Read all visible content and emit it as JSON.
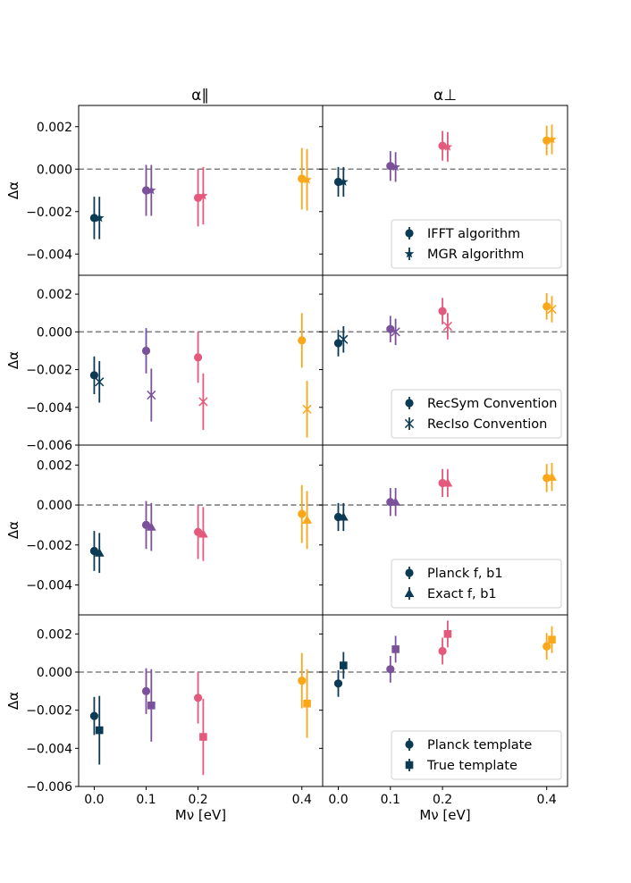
{
  "colors": {
    "c0": "#0b3a55",
    "c1": "#7a519a",
    "c2": "#e45a7c",
    "c3": "#fba71a",
    "zero_line": "#808080"
  },
  "column_titles": [
    "α∥",
    "α⊥"
  ],
  "chart_data": {
    "type": "scatter",
    "xlabel": "Mν [eV]",
    "ylabel": "Δα",
    "xlim": [
      -0.03,
      0.44
    ],
    "xticks": [
      0.0,
      0.1,
      0.2,
      0.4
    ],
    "xtick_labels": [
      "0.0",
      "0.1",
      "0.2",
      "0.4"
    ],
    "x_positions": [
      0.0,
      0.1,
      0.2,
      0.4
    ],
    "reference_line": 0.0,
    "rows": [
      {
        "ylim": [
          -0.005,
          0.003
        ],
        "yticks": [
          -0.004,
          -0.002,
          0.0,
          0.002
        ],
        "ytick_labels": [
          "−0.004",
          "−0.002",
          "0.000",
          "0.002"
        ],
        "legend": [
          "IFFT algorithm",
          "MGR algorithm"
        ],
        "markers": [
          "circle",
          "star"
        ],
        "panels": [
          {
            "series": [
              {
                "y": [
                  -0.0023,
                  -0.001,
                  -0.00135,
                  -0.00045
                ],
                "yerr": [
                  0.001,
                  0.0012,
                  0.00135,
                  0.00145
                ]
              },
              {
                "y": [
                  -0.0023,
                  -0.001,
                  -0.00125,
                  -0.0005
                ],
                "yerr": [
                  0.001,
                  0.0012,
                  0.00135,
                  0.00145
                ]
              }
            ]
          },
          {
            "series": [
              {
                "y": [
                  -0.0006,
                  0.00015,
                  0.0011,
                  0.00135
                ],
                "yerr": [
                  0.0007,
                  0.0007,
                  0.0007,
                  0.0007
                ]
              },
              {
                "y": [
                  -0.0006,
                  0.0001,
                  0.00105,
                  0.0014
                ],
                "yerr": [
                  0.0007,
                  0.0007,
                  0.0007,
                  0.0007
                ]
              }
            ]
          }
        ]
      },
      {
        "ylim": [
          -0.006,
          0.003
        ],
        "yticks": [
          -0.006,
          -0.004,
          -0.002,
          0.0,
          0.002
        ],
        "ytick_labels": [
          "−0.006",
          "−0.004",
          "−0.002",
          "0.000",
          "0.002"
        ],
        "legend": [
          "RecSym Convention",
          "RecIso Convention"
        ],
        "markers": [
          "circle",
          "x"
        ],
        "panels": [
          {
            "series": [
              {
                "y": [
                  -0.0023,
                  -0.001,
                  -0.00135,
                  -0.00045
                ],
                "yerr": [
                  0.001,
                  0.0012,
                  0.00135,
                  0.00145
                ]
              },
              {
                "y": [
                  -0.00265,
                  -0.00335,
                  -0.0037,
                  -0.0041
                ],
                "yerr": [
                  0.0011,
                  0.0014,
                  0.0015,
                  0.0015
                ]
              }
            ]
          },
          {
            "series": [
              {
                "y": [
                  -0.0006,
                  0.00015,
                  0.0011,
                  0.00135
                ],
                "yerr": [
                  0.0007,
                  0.0007,
                  0.0007,
                  0.0007
                ]
              },
              {
                "y": [
                  -0.0004,
                  0.0,
                  0.0003,
                  0.0012
                ],
                "yerr": [
                  0.0007,
                  0.0007,
                  0.0007,
                  0.0007
                ]
              }
            ]
          }
        ]
      },
      {
        "ylim": [
          -0.0055,
          0.003
        ],
        "yticks": [
          -0.004,
          -0.002,
          0.0,
          0.002
        ],
        "ytick_labels": [
          "−0.004",
          "−0.002",
          "0.000",
          "0.002"
        ],
        "legend": [
          "Planck f, b1",
          "Exact f, b1"
        ],
        "markers": [
          "circle",
          "triangle"
        ],
        "panels": [
          {
            "series": [
              {
                "y": [
                  -0.0023,
                  -0.001,
                  -0.00135,
                  -0.00045
                ],
                "yerr": [
                  0.001,
                  0.0012,
                  0.00135,
                  0.00145
                ]
              },
              {
                "y": [
                  -0.0024,
                  -0.0011,
                  -0.00145,
                  -0.00075
                ],
                "yerr": [
                  0.001,
                  0.0012,
                  0.00135,
                  0.00145
                ]
              }
            ]
          },
          {
            "series": [
              {
                "y": [
                  -0.0006,
                  0.00015,
                  0.0011,
                  0.00135
                ],
                "yerr": [
                  0.0007,
                  0.0007,
                  0.0007,
                  0.0007
                ]
              },
              {
                "y": [
                  -0.0006,
                  0.00015,
                  0.0011,
                  0.0014
                ],
                "yerr": [
                  0.0007,
                  0.0007,
                  0.0007,
                  0.0007
                ]
              }
            ]
          }
        ]
      },
      {
        "ylim": [
          -0.006,
          0.003
        ],
        "yticks": [
          -0.006,
          -0.004,
          -0.002,
          0.0,
          0.002
        ],
        "ytick_labels": [
          "−0.006",
          "−0.004",
          "−0.002",
          "0.000",
          "0.002"
        ],
        "legend": [
          "Planck template",
          "True template"
        ],
        "markers": [
          "circle",
          "square"
        ],
        "panels": [
          {
            "series": [
              {
                "y": [
                  -0.0023,
                  -0.001,
                  -0.00135,
                  -0.00045
                ],
                "yerr": [
                  0.001,
                  0.0012,
                  0.00135,
                  0.00145
                ]
              },
              {
                "y": [
                  -0.00305,
                  -0.00175,
                  -0.0034,
                  -0.00165
                ],
                "yerr": [
                  0.0018,
                  0.0019,
                  0.002,
                  0.0018
                ]
              }
            ]
          },
          {
            "series": [
              {
                "y": [
                  -0.0006,
                  0.00015,
                  0.0011,
                  0.00135
                ],
                "yerr": [
                  0.0007,
                  0.0007,
                  0.0007,
                  0.0007
                ]
              },
              {
                "y": [
                  0.00035,
                  0.0012,
                  0.002,
                  0.0017
                ],
                "yerr": [
                  0.0007,
                  0.0007,
                  0.0007,
                  0.0007
                ]
              }
            ]
          }
        ]
      }
    ]
  }
}
